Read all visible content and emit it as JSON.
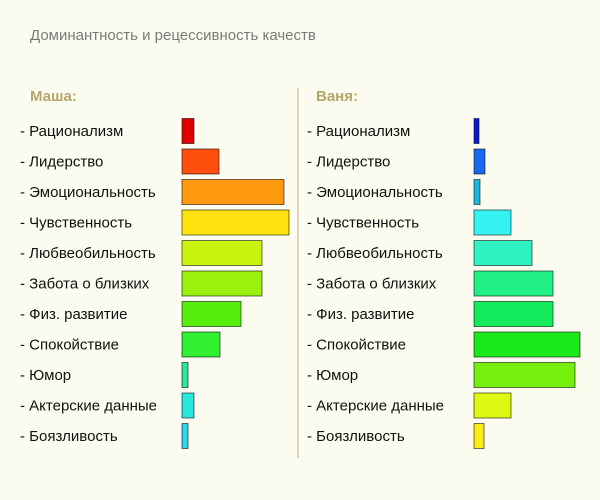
{
  "chart_data": {
    "type": "bar",
    "title": "Доминантность и рецессивность качеств",
    "categories": [
      "- Рационализм",
      "- Лидерство",
      "- Эмоциональность",
      "- Чувственность",
      "- Любвеобильность",
      "- Забота о близких",
      "- Физ. развитие",
      "- Спокойствие",
      "- Юмор",
      "- Актерские данные",
      "- Боязливость"
    ],
    "series": [
      {
        "name": "Маша:",
        "values": [
          12,
          37,
          102,
          107,
          80,
          80,
          59,
          38,
          6,
          12,
          6
        ],
        "colors": [
          "#e10000",
          "#ff4f0e",
          "#ff9a0e",
          "#ffe20e",
          "#c9f20e",
          "#9cf00e",
          "#56ee0e",
          "#30f030",
          "#2ee59b",
          "#2ae6dd",
          "#2ad8ec"
        ]
      },
      {
        "name": "Ваня:",
        "values": [
          5,
          11,
          6,
          37,
          58,
          79,
          79,
          106,
          101,
          37,
          10
        ],
        "colors": [
          "#0a1bd6",
          "#1a68ee",
          "#1bb8dc",
          "#36f2f0",
          "#2ff2c2",
          "#22ef86",
          "#13eb5c",
          "#19e819",
          "#76ef0c",
          "#ddf811",
          "#ffec14"
        ]
      }
    ],
    "xlim": [
      0,
      110
    ]
  }
}
